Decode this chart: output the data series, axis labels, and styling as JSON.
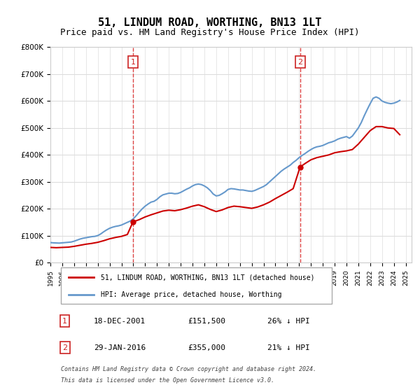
{
  "title": "51, LINDUM ROAD, WORTHING, BN13 1LT",
  "subtitle": "Price paid vs. HM Land Registry's House Price Index (HPI)",
  "title_fontsize": 11,
  "subtitle_fontsize": 9,
  "ylabel_ticks": [
    "£0",
    "£100K",
    "£200K",
    "£300K",
    "£400K",
    "£500K",
    "£600K",
    "£700K",
    "£800K"
  ],
  "ytick_values": [
    0,
    100000,
    200000,
    300000,
    400000,
    500000,
    600000,
    700000,
    800000
  ],
  "ylim": [
    0,
    800000
  ],
  "xlim_start": 1995.0,
  "xlim_end": 2025.5,
  "background_color": "#ffffff",
  "grid_color": "#dddddd",
  "line1_color": "#cc0000",
  "line2_color": "#6699cc",
  "vline_color": "#dd4444",
  "annotation_box_color": "#ffffff",
  "annotation_box_edge": "#cc2222",
  "purchase1_x": 2001.97,
  "purchase1_y": 151500,
  "purchase2_x": 2016.08,
  "purchase2_y": 355000,
  "legend_label1": "51, LINDUM ROAD, WORTHING, BN13 1LT (detached house)",
  "legend_label2": "HPI: Average price, detached house, Worthing",
  "table_row1": [
    "1",
    "18-DEC-2001",
    "£151,500",
    "26% ↓ HPI"
  ],
  "table_row2": [
    "2",
    "29-JAN-2016",
    "£355,000",
    "21% ↓ HPI"
  ],
  "footnote1": "Contains HM Land Registry data © Crown copyright and database right 2024.",
  "footnote2": "This data is licensed under the Open Government Licence v3.0.",
  "hpi_data": {
    "years": [
      1995.0,
      1995.25,
      1995.5,
      1995.75,
      1996.0,
      1996.25,
      1996.5,
      1996.75,
      1997.0,
      1997.25,
      1997.5,
      1997.75,
      1998.0,
      1998.25,
      1998.5,
      1998.75,
      1999.0,
      1999.25,
      1999.5,
      1999.75,
      2000.0,
      2000.25,
      2000.5,
      2000.75,
      2001.0,
      2001.25,
      2001.5,
      2001.75,
      2002.0,
      2002.25,
      2002.5,
      2002.75,
      2003.0,
      2003.25,
      2003.5,
      2003.75,
      2004.0,
      2004.25,
      2004.5,
      2004.75,
      2005.0,
      2005.25,
      2005.5,
      2005.75,
      2006.0,
      2006.25,
      2006.5,
      2006.75,
      2007.0,
      2007.25,
      2007.5,
      2007.75,
      2008.0,
      2008.25,
      2008.5,
      2008.75,
      2009.0,
      2009.25,
      2009.5,
      2009.75,
      2010.0,
      2010.25,
      2010.5,
      2010.75,
      2011.0,
      2011.25,
      2011.5,
      2011.75,
      2012.0,
      2012.25,
      2012.5,
      2012.75,
      2013.0,
      2013.25,
      2013.5,
      2013.75,
      2014.0,
      2014.25,
      2014.5,
      2014.75,
      2015.0,
      2015.25,
      2015.5,
      2015.75,
      2016.0,
      2016.25,
      2016.5,
      2016.75,
      2017.0,
      2017.25,
      2017.5,
      2017.75,
      2018.0,
      2018.25,
      2018.5,
      2018.75,
      2019.0,
      2019.25,
      2019.5,
      2019.75,
      2020.0,
      2020.25,
      2020.5,
      2020.75,
      2021.0,
      2021.25,
      2021.5,
      2021.75,
      2022.0,
      2022.25,
      2022.5,
      2022.75,
      2023.0,
      2023.25,
      2023.5,
      2023.75,
      2024.0,
      2024.25,
      2024.5
    ],
    "values": [
      75000,
      74000,
      73500,
      73000,
      74000,
      75000,
      76000,
      77000,
      80000,
      84000,
      88000,
      91000,
      93000,
      95000,
      97000,
      98000,
      101000,
      107000,
      115000,
      122000,
      128000,
      132000,
      135000,
      137000,
      140000,
      145000,
      150000,
      155000,
      163000,
      175000,
      188000,
      200000,
      210000,
      218000,
      225000,
      228000,
      235000,
      245000,
      252000,
      255000,
      258000,
      258000,
      256000,
      257000,
      261000,
      267000,
      273000,
      278000,
      285000,
      290000,
      292000,
      290000,
      285000,
      278000,
      268000,
      255000,
      248000,
      250000,
      256000,
      263000,
      272000,
      275000,
      274000,
      272000,
      270000,
      270000,
      268000,
      266000,
      265000,
      268000,
      273000,
      278000,
      283000,
      290000,
      300000,
      310000,
      320000,
      330000,
      340000,
      348000,
      355000,
      362000,
      372000,
      380000,
      390000,
      398000,
      405000,
      413000,
      420000,
      426000,
      430000,
      432000,
      435000,
      440000,
      445000,
      448000,
      452000,
      458000,
      462000,
      465000,
      468000,
      462000,
      470000,
      485000,
      500000,
      520000,
      545000,
      568000,
      590000,
      610000,
      615000,
      610000,
      600000,
      595000,
      592000,
      590000,
      592000,
      596000,
      602000
    ]
  },
  "property_data": {
    "years": [
      1995.0,
      1995.5,
      1996.0,
      1996.5,
      1997.0,
      1997.5,
      1998.0,
      1998.5,
      1999.0,
      1999.5,
      2000.0,
      2000.5,
      2001.0,
      2001.5,
      2001.97,
      2002.5,
      2003.0,
      2003.5,
      2004.0,
      2004.5,
      2005.0,
      2005.5,
      2006.0,
      2006.5,
      2007.0,
      2007.5,
      2008.0,
      2008.5,
      2009.0,
      2009.5,
      2010.0,
      2010.5,
      2011.0,
      2011.5,
      2012.0,
      2012.5,
      2013.0,
      2013.5,
      2014.0,
      2014.5,
      2015.0,
      2015.5,
      2016.08,
      2016.5,
      2017.0,
      2017.5,
      2018.0,
      2018.5,
      2019.0,
      2019.5,
      2020.0,
      2020.5,
      2021.0,
      2021.5,
      2022.0,
      2022.5,
      2023.0,
      2023.5,
      2024.0,
      2024.5
    ],
    "values": [
      57000,
      56000,
      57000,
      58000,
      61000,
      65000,
      69000,
      72000,
      76000,
      82000,
      89000,
      94000,
      98000,
      105000,
      151500,
      160000,
      170000,
      178000,
      185000,
      192000,
      195000,
      193000,
      197000,
      203000,
      210000,
      215000,
      208000,
      198000,
      190000,
      196000,
      205000,
      210000,
      208000,
      205000,
      202000,
      207000,
      215000,
      225000,
      238000,
      250000,
      262000,
      275000,
      355000,
      368000,
      382000,
      390000,
      395000,
      400000,
      408000,
      412000,
      415000,
      420000,
      440000,
      465000,
      490000,
      505000,
      505000,
      500000,
      498000,
      475000
    ]
  }
}
